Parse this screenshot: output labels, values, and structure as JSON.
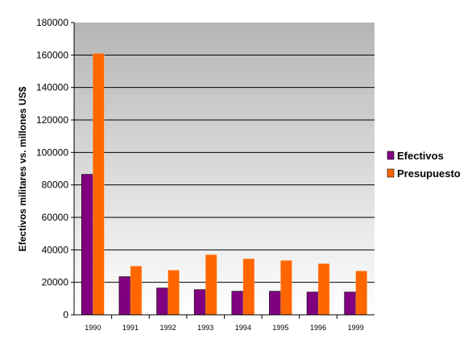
{
  "chart_data": {
    "type": "bar",
    "categories": [
      "1990",
      "1991",
      "1992",
      "1993",
      "1994",
      "1995",
      "1996",
      "1999"
    ],
    "series": [
      {
        "name": "Efectivos",
        "values": [
          86500,
          23500,
          16500,
          15500,
          14500,
          14500,
          14000,
          14000
        ]
      },
      {
        "name": "Presupuesto",
        "values": [
          161000,
          30000,
          27500,
          37000,
          34500,
          33500,
          31500,
          27000
        ]
      }
    ],
    "title": "",
    "xlabel": "",
    "ylabel": "Efectivos militares vs. millones US$",
    "ylim": [
      0,
      180000
    ],
    "yticks": [
      "0",
      "20000",
      "40000",
      "60000",
      "80000",
      "100000",
      "120000",
      "140000",
      "160000",
      "180000"
    ],
    "grid": true,
    "legend_position": "right",
    "colors": {
      "Efectivos": "#800080",
      "Presupuesto": "#ff6600",
      "plot_top": "#b5b5b5",
      "plot_bottom": "#ffffff"
    }
  }
}
